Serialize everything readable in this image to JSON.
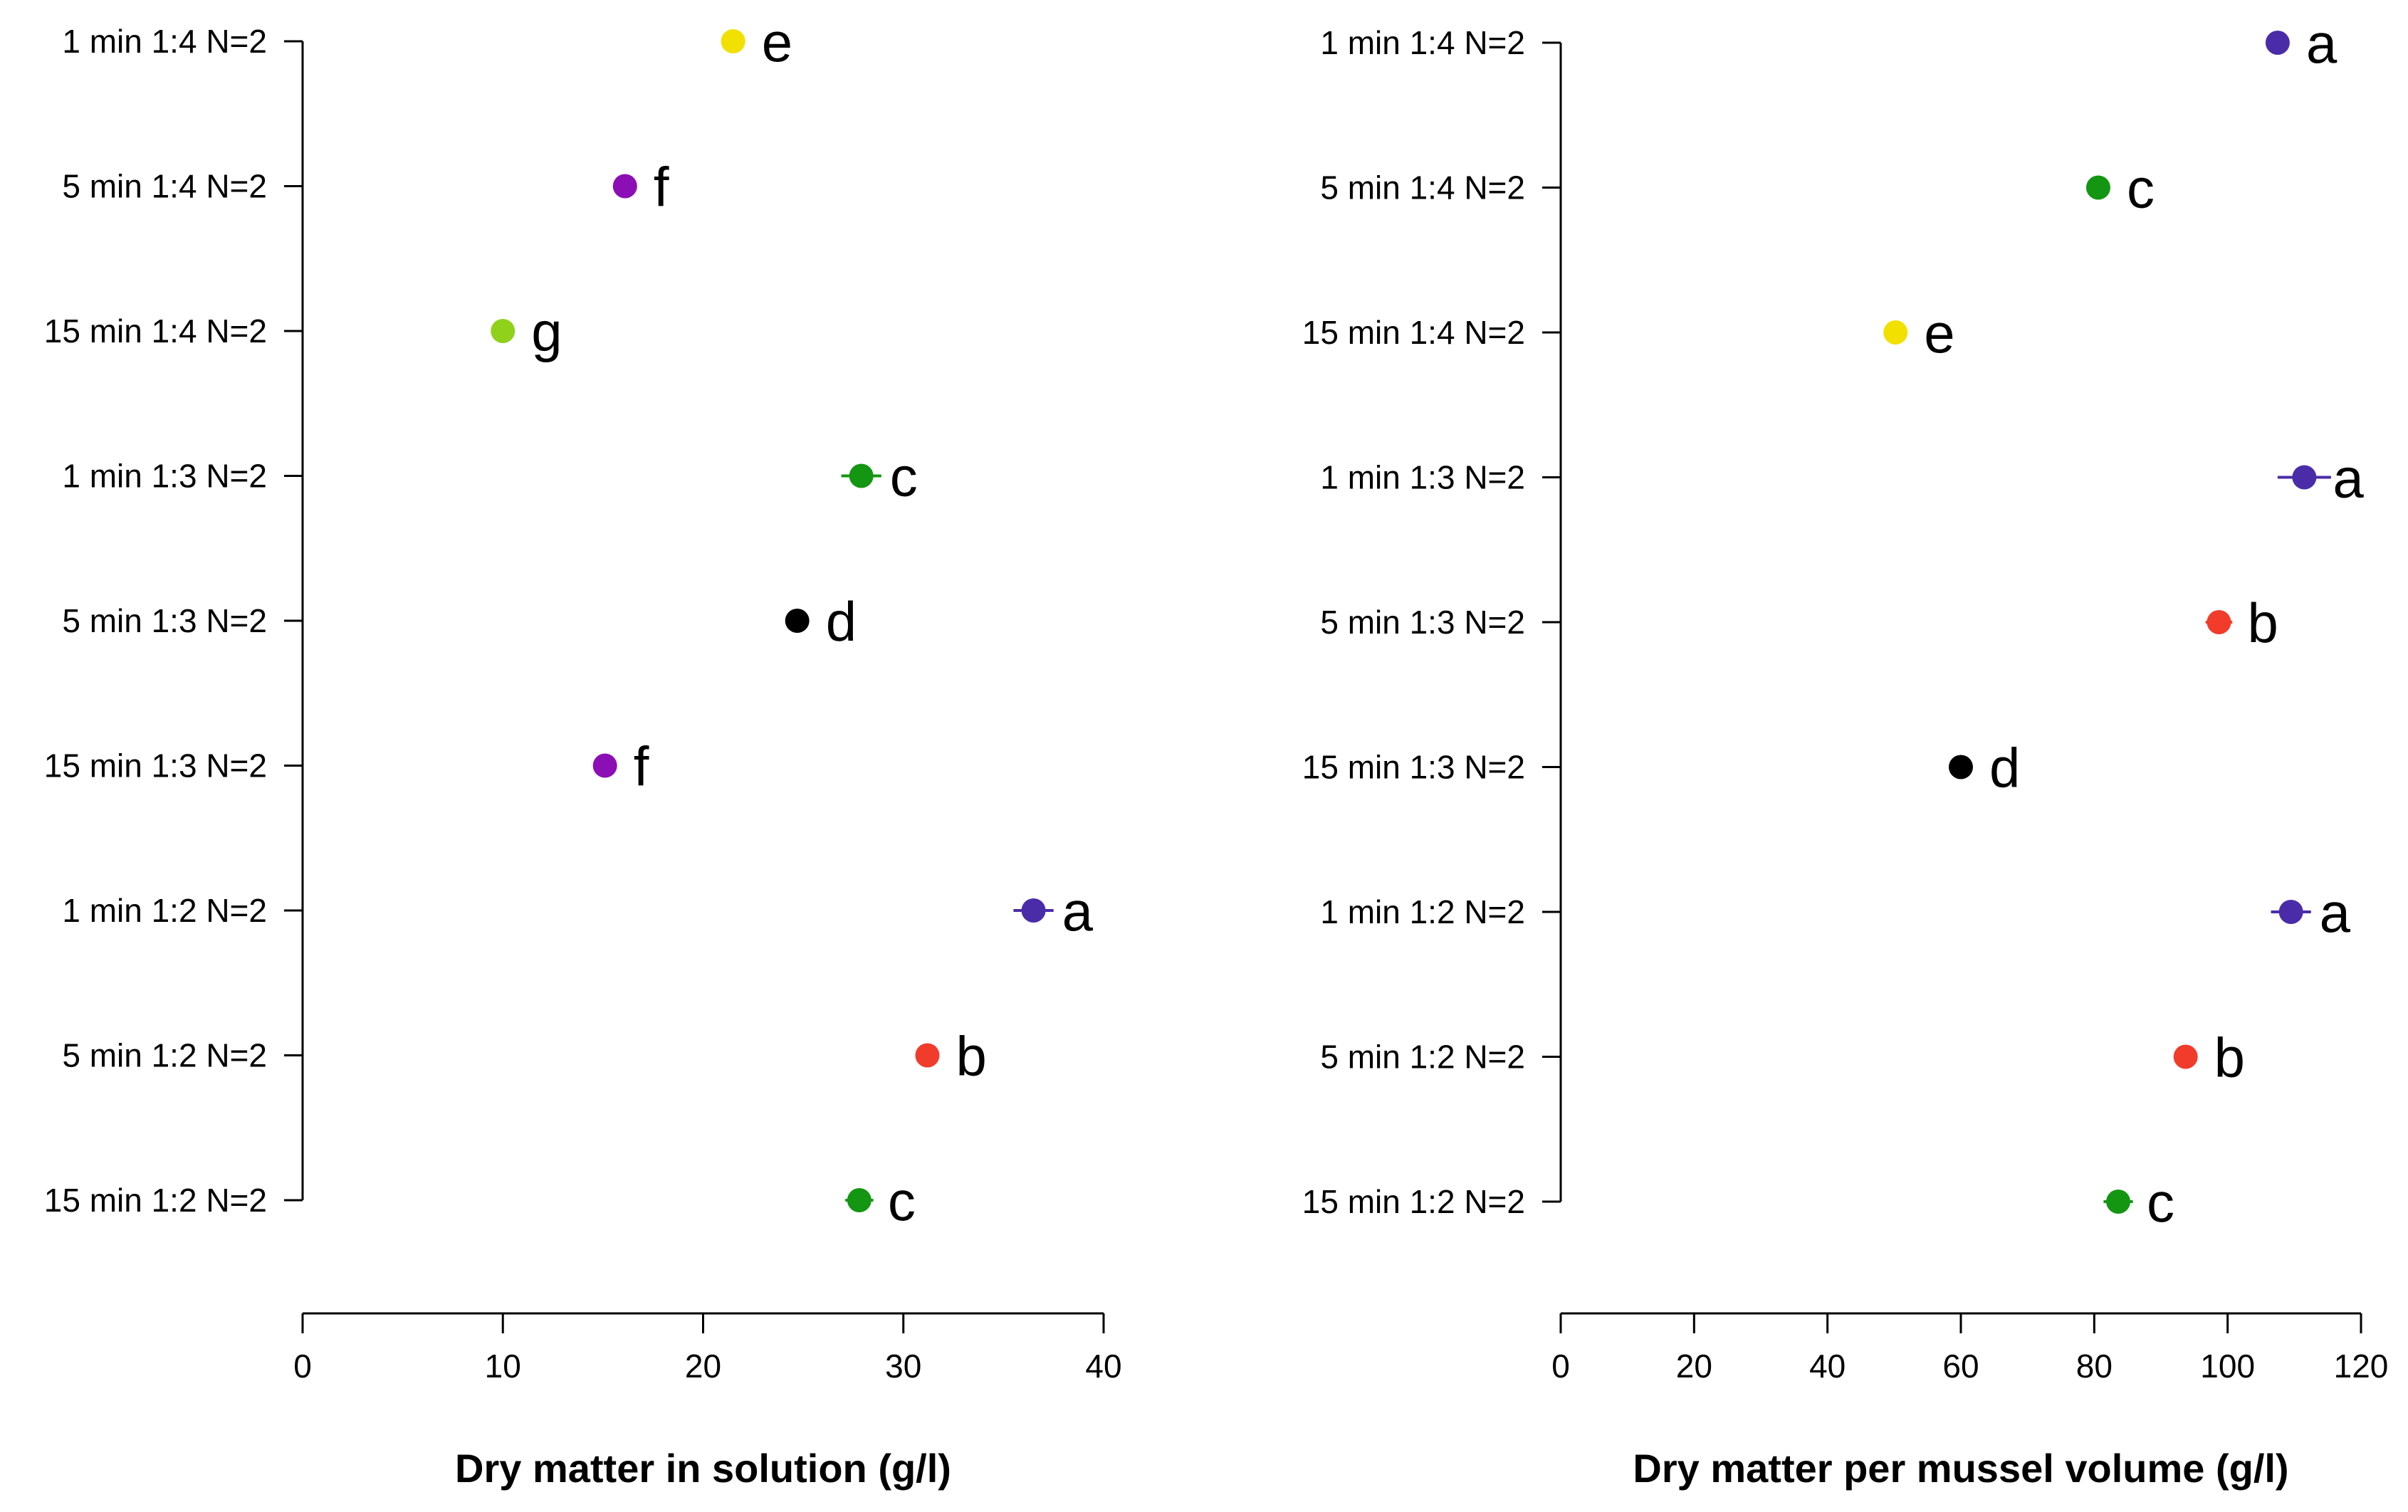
{
  "chart_data": [
    {
      "type": "scatter",
      "title": "",
      "xlabel": "Dry matter in solution (g/l)",
      "ylabel": "",
      "xlim": [
        0,
        40
      ],
      "xticks": [
        "0",
        "10",
        "20",
        "30",
        "40"
      ],
      "categories": [
        "1 min 1:4 N=2",
        "5 min 1:4 N=2",
        "15 min 1:4 N=2",
        "1 min 1:3 N=2",
        "5 min 1:3 N=2",
        "15 min 1:3 N=2",
        "1 min 1:2 N=2",
        "5 min 1:2 N=2",
        "15 min 1:2 N=2"
      ],
      "values": [
        21.5,
        16.1,
        10.0,
        27.9,
        24.7,
        15.1,
        36.5,
        31.2,
        27.8
      ],
      "errors": [
        0.2,
        0.2,
        0.2,
        1.0,
        0.5,
        0.3,
        1.0,
        0.3,
        0.7
      ],
      "letters": [
        "e",
        "f",
        "g",
        "c",
        "d",
        "f",
        "a",
        "b",
        "c"
      ],
      "colors": [
        "#f2e000",
        "#8b0fb5",
        "#8fd11b",
        "#149612",
        "#000000",
        "#8b0fb5",
        "#4b2ca8",
        "#f13b2b",
        "#149612"
      ]
    },
    {
      "type": "scatter",
      "title": "",
      "xlabel": "Dry matter per mussel volume (g/l)",
      "ylabel": "",
      "xlim": [
        0,
        120
      ],
      "xticks": [
        "0",
        "20",
        "40",
        "60",
        "80",
        "100",
        "120"
      ],
      "categories": [
        "1 min 1:4 N=2",
        "5 min 1:4 N=2",
        "15 min 1:4 N=2",
        "1 min 1:3 N=2",
        "5 min 1:3 N=2",
        "15 min 1:3 N=2",
        "1 min 1:2 N=2",
        "5 min 1:2 N=2",
        "15 min 1:2 N=2"
      ],
      "values": [
        107.5,
        80.6,
        50.2,
        111.5,
        98.7,
        60.0,
        109.5,
        93.7,
        83.6
      ],
      "errors": [
        0.8,
        0.6,
        0.4,
        4.0,
        2.0,
        0.8,
        3.0,
        1.0,
        2.2
      ],
      "letters": [
        "a",
        "c",
        "e",
        "a",
        "b",
        "d",
        "a",
        "b",
        "c"
      ],
      "colors": [
        "#4b2ca8",
        "#149612",
        "#f2e000",
        "#4b2ca8",
        "#f13b2b",
        "#000000",
        "#4b2ca8",
        "#f13b2b",
        "#149612"
      ]
    }
  ]
}
